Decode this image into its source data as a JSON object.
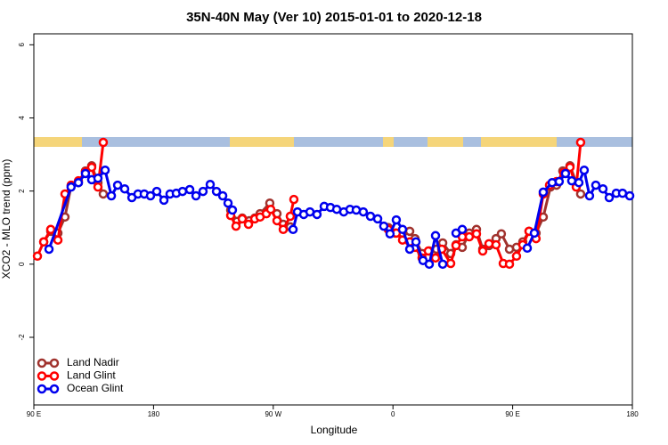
{
  "chart_data": {
    "type": "line",
    "title": "35N-40N May (Ver 10)   2015-01-01 to 2020-12-18",
    "x_label": "Longitude",
    "y_label": "XCO2 - MLO trend (ppm)",
    "xlim": [
      90,
      540
    ],
    "ylim": [
      -3.85,
      6.3
    ],
    "xticks": [
      {
        "value": 90,
        "label": "90 E"
      },
      180,
      {
        "value": 270,
        "label": "90 W"
      },
      {
        "value": 360,
        "label": "0"
      },
      {
        "value": 450,
        "label": "90 E"
      },
      {
        "value": 540,
        "label": "180"
      }
    ],
    "yticks": [
      -2,
      0,
      2,
      4,
      6
    ],
    "legend": "bottomleft",
    "series": [
      {
        "name": "Land Nadir",
        "color": "#a0322d",
        "x": [
          97.4,
          102.7,
          108.1,
          113.4,
          118.1,
          123.5,
          128.8,
          133.5,
          138.2,
          142.2,
          null,
          238,
          242.7,
          246.7,
          252,
          256.1,
          260.1,
          267.4,
          272.8,
          277.5,
          282.8,
          null,
          356.5,
          361.9,
          367.2,
          372.6,
          376.6,
          381.9,
          387.3,
          392.7,
          397.4,
          403.4,
          407.4,
          412.1,
          417.4,
          422.8,
          427.5,
          432.2,
          437.5,
          441.5,
          447.6,
          452.9,
          457.6,
          462.3,
          467.6,
          473,
          478.4,
          483,
          487.7,
          493.1,
          497.8,
          501.1
        ],
        "values": [
          0.61,
          0.9,
          0.85,
          1.29,
          2.16,
          2.23,
          2.55,
          2.69,
          2.23,
          1.92,
          null,
          1.48,
          1.17,
          1.26,
          1.19,
          1.26,
          1.38,
          1.67,
          1.38,
          1.09,
          1.02,
          null,
          1,
          0.85,
          0.85,
          0.9,
          0.7,
          0.29,
          0.36,
          0.41,
          0.58,
          0.29,
          0.53,
          0.46,
          0.85,
          0.95,
          0.41,
          0.51,
          0.7,
          0.83,
          0.41,
          0.46,
          0.61,
          0.9,
          0.85,
          1.29,
          2.11,
          2.16,
          2.55,
          2.69,
          2.23,
          1.92
        ]
      },
      {
        "name": "Land Glint",
        "color": "#ff0000",
        "x": [
          92.7,
          97.4,
          102.7,
          108.1,
          113.4,
          118.1,
          123.5,
          128.8,
          133.5,
          138.2,
          142.2,
          null,
          238,
          242,
          246.7,
          251.4,
          256.1,
          260.1,
          264.8,
          268.1,
          272.8,
          277.5,
          282.8,
          285.5,
          null,
          356.5,
          362.5,
          367.2,
          372.6,
          376.6,
          381.9,
          386.6,
          392,
          396.7,
          403.4,
          407.4,
          412.1,
          417.4,
          422.8,
          427.5,
          432.2,
          437.5,
          442.9,
          447.6,
          452.9,
          457.6,
          462.3,
          467.6,
          473,
          477.7,
          483,
          488.4,
          493.1,
          497.8,
          501.1
        ],
        "values": [
          0.22,
          0.61,
          0.95,
          0.66,
          1.92,
          2.16,
          2.28,
          2.52,
          2.65,
          2.11,
          3.33,
          null,
          1.33,
          1.04,
          1.24,
          1.09,
          1.24,
          1.29,
          1.38,
          1.5,
          1.19,
          0.95,
          1.31,
          1.77,
          null,
          0.95,
          0.85,
          0.66,
          0.61,
          0.46,
          0.17,
          0.36,
          0.17,
          0.41,
          0.02,
          0.51,
          0.75,
          0.75,
          0.83,
          0.36,
          0.56,
          0.53,
          0.02,
          0,
          0.22,
          0.53,
          0.9,
          0.7,
          1.92,
          2.16,
          2.26,
          2.5,
          2.65,
          2.11,
          3.33
        ]
      },
      {
        "name": "Ocean Glint",
        "color": "#0000ee",
        "x": [
          101.4,
          118,
          123.5,
          128.8,
          133.5,
          138.2,
          143.6,
          148.3,
          153,
          158.3,
          163.7,
          168.3,
          173,
          177.7,
          182.4,
          187.8,
          192.4,
          197.1,
          201.8,
          207.2,
          211.9,
          217.2,
          222.6,
          227.3,
          232,
          236,
          239.3,
          null,
          284.9,
          288.2,
          292.9,
          297.6,
          302.9,
          308.3,
          313,
          317.7,
          323,
          327.7,
          332.4,
          337.7,
          343.1,
          348.5,
          353.1,
          357.8,
          362.5,
          367.2,
          372.6,
          377.3,
          382.6,
          387.3,
          392,
          397.4,
          null,
          407.4,
          412.1,
          null,
          461,
          466.3,
          473,
          479.7,
          485,
          489.7,
          494.4,
          499.8,
          503.8,
          507.8,
          512.5,
          517.9,
          522.6,
          527.9,
          532.6,
          538
        ],
        "values": [
          0.41,
          2.11,
          2.23,
          2.48,
          2.31,
          2.35,
          2.57,
          1.87,
          2.16,
          2.06,
          1.82,
          1.92,
          1.92,
          1.87,
          1.99,
          1.75,
          1.92,
          1.94,
          1.99,
          2.04,
          1.87,
          1.99,
          2.18,
          1.99,
          1.87,
          1.67,
          1.48,
          null,
          0.95,
          1.43,
          1.36,
          1.43,
          1.36,
          1.58,
          1.55,
          1.5,
          1.43,
          1.5,
          1.48,
          1.43,
          1.31,
          1.24,
          1.04,
          0.83,
          1.21,
          0.95,
          0.41,
          0.61,
          0.1,
          0,
          0.78,
          0,
          null,
          0.85,
          0.95,
          null,
          0.44,
          0.85,
          1.97,
          2.23,
          2.26,
          2.48,
          2.28,
          2.23,
          2.57,
          1.87,
          2.16,
          2.06,
          1.82,
          1.94,
          1.94,
          1.87
        ]
      }
    ]
  }
}
